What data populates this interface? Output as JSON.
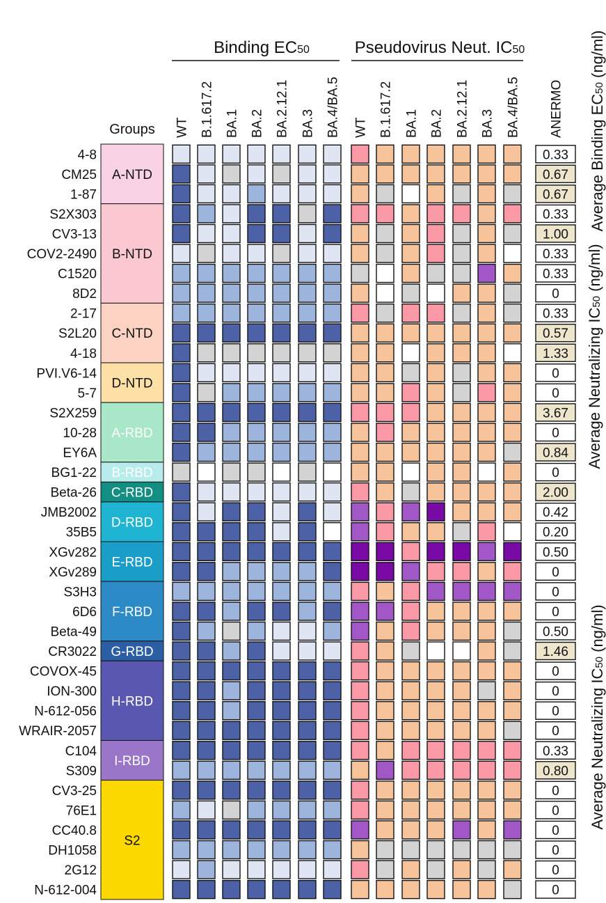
{
  "chart_data": {
    "type": "heatmap",
    "section_titles": {
      "binding": "Binding EC",
      "binding_sub": "50",
      "neut": "Pseudovirus Neut. IC",
      "neut_sub": "50"
    },
    "groups_header": "Groups",
    "anermo_header": "ANERMO",
    "binding_columns": [
      "WT",
      "B.1.617.2",
      "BA.1",
      "BA.2",
      "BA.2.12.1",
      "BA.3",
      "BA.4/BA.5"
    ],
    "neut_columns": [
      "WT",
      "B.1.617.2",
      "BA.1",
      "BA.2",
      "BA.2.12.1",
      "BA.3",
      "BA.4/BA.5"
    ],
    "right_labels": [
      {
        "text": "Average Binding EC",
        "sub": "50",
        "tail": " (ng/ml)"
      },
      {
        "text": "Average Neutralizing IC",
        "sub": "50",
        "tail": " (ng/ml)"
      },
      {
        "text": "Average Neutralizing IC",
        "sub": "50",
        "tail": " (ng/ml)"
      }
    ],
    "groups": [
      {
        "name": "A-NTD",
        "span": 3,
        "color": "#f9d2e6",
        "text_color": "#111111"
      },
      {
        "name": "B-NTD",
        "span": 5,
        "color": "#fbc8d2",
        "text_color": "#111111"
      },
      {
        "name": "C-NTD",
        "span": 3,
        "color": "#fcd3c2",
        "text_color": "#111111"
      },
      {
        "name": "D-NTD",
        "span": 2,
        "color": "#fde0a6",
        "text_color": "#111111"
      },
      {
        "name": "A-RBD",
        "span": 3,
        "color": "#a8e8c8",
        "text_color": "#ffffff"
      },
      {
        "name": "B-RBD",
        "span": 1,
        "color": "#b8ecec",
        "text_color": "#ffffff"
      },
      {
        "name": "C-RBD",
        "span": 1,
        "color": "#138e82",
        "text_color": "#ffffff"
      },
      {
        "name": "D-RBD",
        "span": 2,
        "color": "#1eb4d2",
        "text_color": "#ffffff"
      },
      {
        "name": "E-RBD",
        "span": 2,
        "color": "#1a9ec8",
        "text_color": "#ffffff"
      },
      {
        "name": "F-RBD",
        "span": 3,
        "color": "#2c8bc6",
        "text_color": "#ffffff"
      },
      {
        "name": "G-RBD",
        "span": 1,
        "color": "#2c5ea4",
        "text_color": "#ffffff"
      },
      {
        "name": "H-RBD",
        "span": 4,
        "color": "#5a57b0",
        "text_color": "#ffffff"
      },
      {
        "name": "I-RBD",
        "span": 2,
        "color": "#9a76c8",
        "text_color": "#ffffff"
      },
      {
        "name": "S2",
        "span": 6,
        "color": "#fad800",
        "text_color": "#111111"
      }
    ],
    "palette": {
      "binding": {
        "N": "#4d62a6",
        "M": "#9db4dc",
        "L": "#dfe5f3",
        "G": "#d3d3d3",
        "W": "#ffffff"
      },
      "neut": {
        "O": "#f6c39a",
        "P": "#fb9aa6",
        "V": "#a257c6",
        "D": "#7a0aa6",
        "G": "#d3d3d3",
        "W": "#ffffff"
      }
    },
    "anermo_highlight_color": "#ede6cc",
    "rows": [
      {
        "antibody": "4-8",
        "binding": [
          "L",
          "L",
          "L",
          "L",
          "L",
          "L",
          "L"
        ],
        "neut": [
          "P",
          "O",
          "O",
          "O",
          "O",
          "O",
          "O"
        ],
        "anermo": "0.33",
        "highlight": false
      },
      {
        "antibody": "CM25",
        "binding": [
          "N",
          "L",
          "G",
          "L",
          "G",
          "L",
          "L"
        ],
        "neut": [
          "O",
          "O",
          "O",
          "O",
          "O",
          "O",
          "O"
        ],
        "anermo": "0.67",
        "highlight": true
      },
      {
        "antibody": "1-87",
        "binding": [
          "N",
          "L",
          "L",
          "M",
          "L",
          "L",
          "L"
        ],
        "neut": [
          "O",
          "G",
          "W",
          "O",
          "G",
          "O",
          "G"
        ],
        "anermo": "0.67",
        "highlight": true
      },
      {
        "antibody": "S2X303",
        "binding": [
          "N",
          "M",
          "L",
          "N",
          "N",
          "G",
          "N"
        ],
        "neut": [
          "P",
          "P",
          "O",
          "P",
          "P",
          "O",
          "P"
        ],
        "anermo": "0.33",
        "highlight": false
      },
      {
        "antibody": "CV3-13",
        "binding": [
          "N",
          "L",
          "L",
          "N",
          "N",
          "L",
          "N"
        ],
        "neut": [
          "O",
          "G",
          "O",
          "P",
          "G",
          "O",
          "G"
        ],
        "anermo": "1.00",
        "highlight": true
      },
      {
        "antibody": "COV2-2490",
        "binding": [
          "L",
          "G",
          "L",
          "L",
          "G",
          "L",
          "L"
        ],
        "neut": [
          "O",
          "G",
          "O",
          "P",
          "G",
          "O",
          "W"
        ],
        "anermo": "0.33",
        "highlight": false
      },
      {
        "antibody": "C1520",
        "binding": [
          "M",
          "M",
          "M",
          "M",
          "M",
          "M",
          "M"
        ],
        "neut": [
          "G",
          "W",
          "O",
          "G",
          "G",
          "V",
          "O"
        ],
        "anermo": "0.33",
        "highlight": false
      },
      {
        "antibody": "8D2",
        "binding": [
          "M",
          "M",
          "M",
          "M",
          "M",
          "M",
          "M"
        ],
        "neut": [
          "O",
          "W",
          "G",
          "W",
          "O",
          "O",
          "G"
        ],
        "anermo": "0",
        "highlight": false
      },
      {
        "antibody": "2-17",
        "binding": [
          "M",
          "M",
          "M",
          "M",
          "M",
          "M",
          "M"
        ],
        "neut": [
          "P",
          "G",
          "P",
          "P",
          "G",
          "O",
          "G"
        ],
        "anermo": "0.33",
        "highlight": false
      },
      {
        "antibody": "S2L20",
        "binding": [
          "N",
          "N",
          "N",
          "N",
          "N",
          "N",
          "N"
        ],
        "neut": [
          "O",
          "O",
          "O",
          "O",
          "O",
          "O",
          "O"
        ],
        "anermo": "0.57",
        "highlight": true
      },
      {
        "antibody": "4-18",
        "binding": [
          "N",
          "G",
          "G",
          "G",
          "G",
          "G",
          "G"
        ],
        "neut": [
          "O",
          "O",
          "W",
          "O",
          "O",
          "O",
          "W"
        ],
        "anermo": "1.33",
        "highlight": true
      },
      {
        "antibody": "PVI.V6-14",
        "binding": [
          "N",
          "L",
          "L",
          "L",
          "L",
          "L",
          "L"
        ],
        "neut": [
          "O",
          "O",
          "G",
          "O",
          "G",
          "O",
          "O"
        ],
        "anermo": "0",
        "highlight": false
      },
      {
        "antibody": "5-7",
        "binding": [
          "N",
          "G",
          "M",
          "M",
          "M",
          "M",
          "M"
        ],
        "neut": [
          "O",
          "O",
          "P",
          "O",
          "G",
          "P",
          "O"
        ],
        "anermo": "0",
        "highlight": false
      },
      {
        "antibody": "S2X259",
        "binding": [
          "N",
          "N",
          "N",
          "N",
          "N",
          "N",
          "N"
        ],
        "neut": [
          "P",
          "P",
          "P",
          "O",
          "O",
          "O",
          "O"
        ],
        "anermo": "3.67",
        "highlight": true
      },
      {
        "antibody": "10-28",
        "binding": [
          "N",
          "N",
          "M",
          "M",
          "M",
          "M",
          "M"
        ],
        "neut": [
          "O",
          "P",
          "O",
          "O",
          "O",
          "O",
          "O"
        ],
        "anermo": "0",
        "highlight": false
      },
      {
        "antibody": "EY6A",
        "binding": [
          "N",
          "M",
          "M",
          "M",
          "M",
          "M",
          "M"
        ],
        "neut": [
          "O",
          "O",
          "O",
          "O",
          "O",
          "O",
          "G"
        ],
        "anermo": "0.84",
        "highlight": true
      },
      {
        "antibody": "BG1-22",
        "binding": [
          "G",
          "W",
          "G",
          "G",
          "W",
          "G",
          "W"
        ],
        "neut": [
          "O",
          "O",
          "W",
          "O",
          "O",
          "W",
          "O"
        ],
        "anermo": "0",
        "highlight": false
      },
      {
        "antibody": "Beta-26",
        "binding": [
          "N",
          "L",
          "L",
          "L",
          "L",
          "L",
          "L"
        ],
        "neut": [
          "P",
          "O",
          "G",
          "O",
          "O",
          "O",
          "O"
        ],
        "anermo": "2.00",
        "highlight": true
      },
      {
        "antibody": "JMB2002",
        "binding": [
          "N",
          "L",
          "N",
          "N",
          "L",
          "N",
          "L"
        ],
        "neut": [
          "V",
          "P",
          "V",
          "D",
          "O",
          "O",
          "O"
        ],
        "anermo": "0.42",
        "highlight": false
      },
      {
        "antibody": "35B5",
        "binding": [
          "N",
          "N",
          "N",
          "N",
          "L",
          "N",
          "W"
        ],
        "neut": [
          "V",
          "P",
          "O",
          "O",
          "G",
          "P",
          "W"
        ],
        "anermo": "0.20",
        "highlight": false
      },
      {
        "antibody": "XGv282",
        "binding": [
          "N",
          "N",
          "N",
          "N",
          "N",
          "N",
          "N"
        ],
        "neut": [
          "D",
          "D",
          "P",
          "D",
          "D",
          "V",
          "D"
        ],
        "anermo": "0.50",
        "highlight": false
      },
      {
        "antibody": "XGv289",
        "binding": [
          "N",
          "N",
          "M",
          "M",
          "M",
          "M",
          "N"
        ],
        "neut": [
          "D",
          "D",
          "V",
          "P",
          "P",
          "O",
          "P"
        ],
        "anermo": "0",
        "highlight": false
      },
      {
        "antibody": "S3H3",
        "binding": [
          "M",
          "M",
          "M",
          "M",
          "M",
          "M",
          "M"
        ],
        "neut": [
          "P",
          "O",
          "P",
          "V",
          "V",
          "V",
          "V"
        ],
        "anermo": "0",
        "highlight": false
      },
      {
        "antibody": "6D6",
        "binding": [
          "N",
          "N",
          "M",
          "N",
          "N",
          "M",
          "N"
        ],
        "neut": [
          "V",
          "V",
          "P",
          "O",
          "O",
          "O",
          "O"
        ],
        "anermo": "0",
        "highlight": false
      },
      {
        "antibody": "Beta-49",
        "binding": [
          "N",
          "M",
          "G",
          "M",
          "L",
          "L",
          "M"
        ],
        "neut": [
          "V",
          "O",
          "P",
          "O",
          "O",
          "O",
          "G"
        ],
        "anermo": "0.50",
        "highlight": false
      },
      {
        "antibody": "CR3022",
        "binding": [
          "N",
          "N",
          "M",
          "N",
          "L",
          "L",
          "L"
        ],
        "neut": [
          "P",
          "O",
          "G",
          "W",
          "W",
          "O",
          "G"
        ],
        "anermo": "1.46",
        "highlight": true
      },
      {
        "antibody": "COVOX-45",
        "binding": [
          "N",
          "N",
          "N",
          "N",
          "N",
          "N",
          "N"
        ],
        "neut": [
          "P",
          "O",
          "O",
          "O",
          "O",
          "O",
          "O"
        ],
        "anermo": "0",
        "highlight": false
      },
      {
        "antibody": "ION-300",
        "binding": [
          "N",
          "N",
          "M",
          "N",
          "N",
          "N",
          "N"
        ],
        "neut": [
          "P",
          "O",
          "O",
          "O",
          "O",
          "G",
          "O"
        ],
        "anermo": "0",
        "highlight": false
      },
      {
        "antibody": "N-612-056",
        "binding": [
          "N",
          "N",
          "M",
          "N",
          "N",
          "N",
          "N"
        ],
        "neut": [
          "P",
          "O",
          "O",
          "O",
          "O",
          "O",
          "O"
        ],
        "anermo": "0",
        "highlight": false
      },
      {
        "antibody": "WRAIR-2057",
        "binding": [
          "N",
          "N",
          "N",
          "N",
          "N",
          "N",
          "N"
        ],
        "neut": [
          "P",
          "O",
          "O",
          "O",
          "O",
          "O",
          "G"
        ],
        "anermo": "0",
        "highlight": false
      },
      {
        "antibody": "C104",
        "binding": [
          "N",
          "N",
          "N",
          "N",
          "N",
          "N",
          "N"
        ],
        "neut": [
          "P",
          "O",
          "P",
          "P",
          "P",
          "P",
          "P"
        ],
        "anermo": "0.33",
        "highlight": false
      },
      {
        "antibody": "S309",
        "binding": [
          "M",
          "M",
          "M",
          "M",
          "M",
          "M",
          "M"
        ],
        "neut": [
          "O",
          "V",
          "P",
          "P",
          "P",
          "P",
          "P"
        ],
        "anermo": "0.80",
        "highlight": true
      },
      {
        "antibody": "CV3-25",
        "binding": [
          "N",
          "N",
          "N",
          "N",
          "N",
          "N",
          "N"
        ],
        "neut": [
          "P",
          "O",
          "O",
          "O",
          "O",
          "O",
          "O"
        ],
        "anermo": "0",
        "highlight": false
      },
      {
        "antibody": "76E1",
        "binding": [
          "M",
          "L",
          "G",
          "M",
          "M",
          "M",
          "M"
        ],
        "neut": [
          "P",
          "O",
          "O",
          "O",
          "O",
          "O",
          "O"
        ],
        "anermo": "0",
        "highlight": false
      },
      {
        "antibody": "CC40.8",
        "binding": [
          "N",
          "N",
          "N",
          "N",
          "N",
          "N",
          "N"
        ],
        "neut": [
          "V",
          "O",
          "O",
          "O",
          "V",
          "O",
          "V"
        ],
        "anermo": "0",
        "highlight": false
      },
      {
        "antibody": "DH1058",
        "binding": [
          "M",
          "M",
          "M",
          "M",
          "M",
          "M",
          "M"
        ],
        "neut": [
          "O",
          "G",
          "G",
          "G",
          "G",
          "G",
          "G"
        ],
        "anermo": "0",
        "highlight": false
      },
      {
        "antibody": "2G12",
        "binding": [
          "L",
          "M",
          "L",
          "L",
          "L",
          "L",
          "L"
        ],
        "neut": [
          "P",
          "G",
          "O",
          "G",
          "O",
          "G",
          "O"
        ],
        "anermo": "0",
        "highlight": false
      },
      {
        "antibody": "N-612-004",
        "binding": [
          "N",
          "N",
          "N",
          "N",
          "N",
          "N",
          "N"
        ],
        "neut": [
          "O",
          "O",
          "O",
          "O",
          "O",
          "O",
          "G"
        ],
        "anermo": "0",
        "highlight": false
      }
    ]
  }
}
